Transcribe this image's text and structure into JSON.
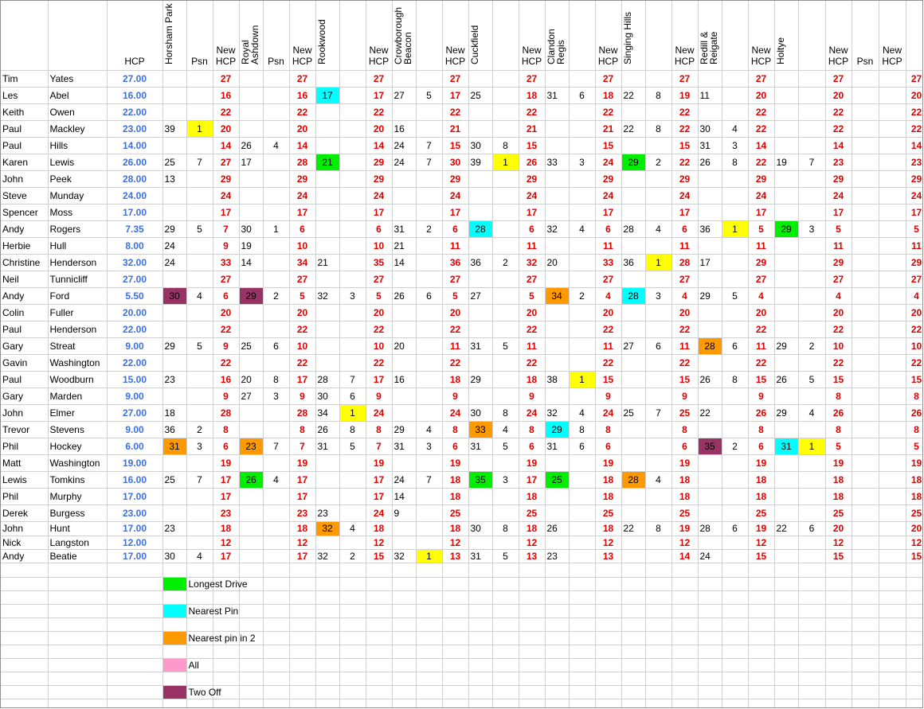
{
  "headers": {
    "hcp": "HCP",
    "psn": "Psn",
    "new_hcp_line1": "New",
    "new_hcp_line2": "HCP",
    "courses": [
      "Horsham Park",
      "Royal Ashdown",
      "Rookwood",
      "Crowborough Beacon",
      "Cuckfield",
      "Clandon Regis",
      "Singing Hills",
      "Redill & Reigate",
      "Holtye"
    ],
    "last_psn": "Psn"
  },
  "colors": {
    "green": "#00ee00",
    "cyan": "#00ffff",
    "yellow": "#ffff00",
    "orange": "#ff9900",
    "maroon": "#993366",
    "pink": "#ff99cc",
    "hcp_blue": "#3b6fe0",
    "new_hcp_red": "#e00000"
  },
  "rows": [
    {
      "first": "Tim",
      "last": "Yates",
      "hcp": "27.00",
      "cells": [
        "",
        "",
        "27",
        "",
        "",
        "27",
        "",
        "",
        "27",
        "",
        "",
        "27",
        "",
        "",
        "27",
        "",
        "",
        "27",
        "",
        "",
        "27",
        "",
        "",
        "27",
        "",
        "",
        "27",
        "",
        "",
        "27"
      ],
      "hl": {}
    },
    {
      "first": "Les",
      "last": "Abel",
      "hcp": "16.00",
      "cells": [
        "",
        "",
        "16",
        "",
        "",
        "16",
        "17",
        "",
        "17",
        "27",
        "5",
        "17",
        "25",
        "",
        "18",
        "31",
        "6",
        "18",
        "22",
        "8",
        "19",
        "11",
        "",
        "20",
        "",
        "",
        "20",
        "",
        "",
        "20"
      ],
      "hl": {
        "6": "cyan"
      }
    },
    {
      "first": "Keith",
      "last": "Owen",
      "hcp": "22.00",
      "cells": [
        "",
        "",
        "22",
        "",
        "",
        "22",
        "",
        "",
        "22",
        "",
        "",
        "22",
        "",
        "",
        "22",
        "",
        "",
        "22",
        "",
        "",
        "22",
        "",
        "",
        "22",
        "",
        "",
        "22",
        "",
        "",
        "22"
      ],
      "hl": {}
    },
    {
      "first": "Paul",
      "last": "Mackley",
      "hcp": "23.00",
      "cells": [
        "39",
        "1",
        "20",
        "",
        "",
        "20",
        "",
        "",
        "20",
        "16",
        "",
        "21",
        "",
        "",
        "21",
        "",
        "",
        "21",
        "22",
        "8",
        "22",
        "30",
        "4",
        "22",
        "",
        "",
        "22",
        "",
        "",
        "22"
      ],
      "hl": {
        "1": "yellow"
      }
    },
    {
      "first": "Paul",
      "last": "Hills",
      "hcp": "14.00",
      "cells": [
        "",
        "",
        "14",
        "26",
        "4",
        "14",
        "",
        "",
        "14",
        "24",
        "7",
        "15",
        "30",
        "8",
        "15",
        "",
        "",
        "15",
        "",
        "",
        "15",
        "31",
        "3",
        "14",
        "",
        "",
        "14",
        "",
        "",
        "14"
      ],
      "hl": {}
    },
    {
      "first": "Karen",
      "last": "Lewis",
      "hcp": "26.00",
      "cells": [
        "25",
        "7",
        "27",
        "17",
        "",
        "28",
        "21",
        "",
        "29",
        "24",
        "7",
        "30",
        "39",
        "1",
        "26",
        "33",
        "3",
        "24",
        "29",
        "2",
        "22",
        "26",
        "8",
        "22",
        "19",
        "7",
        "23",
        "",
        "",
        "23"
      ],
      "hl": {
        "6": "green",
        "13": "yellow",
        "18": "green"
      }
    },
    {
      "first": "John",
      "last": "Peek",
      "hcp": "28.00",
      "cells": [
        "13",
        "",
        "29",
        "",
        "",
        "29",
        "",
        "",
        "29",
        "",
        "",
        "29",
        "",
        "",
        "29",
        "",
        "",
        "29",
        "",
        "",
        "29",
        "",
        "",
        "29",
        "",
        "",
        "29",
        "",
        "",
        "29"
      ],
      "hl": {}
    },
    {
      "first": "Steve",
      "last": "Munday",
      "hcp": "24.00",
      "cells": [
        "",
        "",
        "24",
        "",
        "",
        "24",
        "",
        "",
        "24",
        "",
        "",
        "24",
        "",
        "",
        "24",
        "",
        "",
        "24",
        "",
        "",
        "24",
        "",
        "",
        "24",
        "",
        "",
        "24",
        "",
        "",
        "24"
      ],
      "hl": {}
    },
    {
      "first": "Spencer",
      "last": "Moss",
      "hcp": "17.00",
      "cells": [
        "",
        "",
        "17",
        "",
        "",
        "17",
        "",
        "",
        "17",
        "",
        "",
        "17",
        "",
        "",
        "17",
        "",
        "",
        "17",
        "",
        "",
        "17",
        "",
        "",
        "17",
        "",
        "",
        "17",
        "",
        "",
        "17"
      ],
      "hl": {}
    },
    {
      "first": "Andy",
      "last": "Rogers",
      "hcp": "7.35",
      "cells": [
        "29",
        "5",
        "7",
        "30",
        "1",
        "6",
        "",
        "",
        "6",
        "31",
        "2",
        "6",
        "28",
        "",
        "6",
        "32",
        "4",
        "6",
        "28",
        "4",
        "6",
        "36",
        "1",
        "5",
        "29",
        "3",
        "5",
        "",
        "",
        "5"
      ],
      "hl": {
        "12": "cyan",
        "22": "yellow",
        "24": "green"
      }
    },
    {
      "first": "Herbie",
      "last": "Hull",
      "hcp": "8.00",
      "cells": [
        "24",
        "",
        "9",
        "19",
        "",
        "10",
        "",
        "",
        "10",
        "21",
        "",
        "11",
        "",
        "",
        "11",
        "",
        "",
        "11",
        "",
        "",
        "11",
        "",
        "",
        "11",
        "",
        "",
        "11",
        "",
        "",
        "11"
      ],
      "hl": {}
    },
    {
      "first": "Christine",
      "last": "Henderson",
      "hcp": "32.00",
      "cells": [
        "24",
        "",
        "33",
        "14",
        "",
        "34",
        "21",
        "",
        "35",
        "14",
        "",
        "36",
        "36",
        "2",
        "32",
        "20",
        "",
        "33",
        "36",
        "1",
        "28",
        "17",
        "",
        "29",
        "",
        "",
        "29",
        "",
        "",
        "29"
      ],
      "hl": {
        "19": "yellow"
      }
    },
    {
      "first": "Neil",
      "last": "Tunnicliff",
      "hcp": "27.00",
      "cells": [
        "",
        "",
        "27",
        "",
        "",
        "27",
        "",
        "",
        "27",
        "",
        "",
        "27",
        "",
        "",
        "27",
        "",
        "",
        "27",
        "",
        "",
        "27",
        "",
        "",
        "27",
        "",
        "",
        "27",
        "",
        "",
        "27"
      ],
      "hl": {}
    },
    {
      "first": "Andy",
      "last": "Ford",
      "hcp": "5.50",
      "cells": [
        "30",
        "4",
        "6",
        "29",
        "2",
        "5",
        "32",
        "3",
        "5",
        "26",
        "6",
        "5",
        "27",
        "",
        "5",
        "34",
        "2",
        "4",
        "28",
        "3",
        "4",
        "29",
        "5",
        "4",
        "",
        "",
        "4",
        "",
        "",
        "4"
      ],
      "hl": {
        "0": "maroon",
        "3": "maroon",
        "15": "orange",
        "18": "cyan"
      }
    },
    {
      "first": "Colin",
      "last": "Fuller",
      "hcp": "20.00",
      "cells": [
        "",
        "",
        "20",
        "",
        "",
        "20",
        "",
        "",
        "20",
        "",
        "",
        "20",
        "",
        "",
        "20",
        "",
        "",
        "20",
        "",
        "",
        "20",
        "",
        "",
        "20",
        "",
        "",
        "20",
        "",
        "",
        "20"
      ],
      "hl": {}
    },
    {
      "first": "Paul",
      "last": "Henderson",
      "hcp": "22.00",
      "cells": [
        "",
        "",
        "22",
        "",
        "",
        "22",
        "",
        "",
        "22",
        "",
        "",
        "22",
        "",
        "",
        "22",
        "",
        "",
        "22",
        "",
        "",
        "22",
        "",
        "",
        "22",
        "",
        "",
        "22",
        "",
        "",
        "22"
      ],
      "hl": {}
    },
    {
      "first": "Gary",
      "last": "Streat",
      "hcp": "9.00",
      "cells": [
        "29",
        "5",
        "9",
        "25",
        "6",
        "10",
        "",
        "",
        "10",
        "20",
        "",
        "11",
        "31",
        "5",
        "11",
        "",
        "",
        "11",
        "27",
        "6",
        "11",
        "28",
        "6",
        "11",
        "29",
        "2",
        "10",
        "",
        "",
        "10"
      ],
      "hl": {
        "21": "orange"
      }
    },
    {
      "first": "Gavin",
      "last": "Washington",
      "hcp": "22.00",
      "cells": [
        "",
        "",
        "22",
        "",
        "",
        "22",
        "",
        "",
        "22",
        "",
        "",
        "22",
        "",
        "",
        "22",
        "",
        "",
        "22",
        "",
        "",
        "22",
        "",
        "",
        "22",
        "",
        "",
        "22",
        "",
        "",
        "22"
      ],
      "hl": {}
    },
    {
      "first": "Paul",
      "last": "Woodburn",
      "hcp": "15.00",
      "cells": [
        "23",
        "",
        "16",
        "20",
        "8",
        "17",
        "28",
        "7",
        "17",
        "16",
        "",
        "18",
        "29",
        "",
        "18",
        "38",
        "1",
        "15",
        "",
        "",
        "15",
        "26",
        "8",
        "15",
        "26",
        "5",
        "15",
        "",
        "",
        "15"
      ],
      "hl": {
        "16": "yellow"
      }
    },
    {
      "first": "Gary",
      "last": "Marden",
      "hcp": "9.00",
      "cells": [
        "",
        "",
        "9",
        "27",
        "3",
        "9",
        "30",
        "6",
        "9",
        "",
        "",
        "9",
        "",
        "",
        "9",
        "",
        "",
        "9",
        "",
        "",
        "9",
        "",
        "",
        "9",
        "",
        "",
        "8",
        "",
        "",
        "8"
      ],
      "hl": {}
    },
    {
      "first": "John",
      "last": "Elmer",
      "hcp": "27.00",
      "cells": [
        "18",
        "",
        "28",
        "",
        "",
        "28",
        "34",
        "1",
        "24",
        "",
        "",
        "24",
        "30",
        "8",
        "24",
        "32",
        "4",
        "24",
        "25",
        "7",
        "25",
        "22",
        "",
        "26",
        "29",
        "4",
        "26",
        "",
        "",
        "26"
      ],
      "hl": {
        "7": "yellow"
      }
    },
    {
      "first": "Trevor",
      "last": "Stevens",
      "hcp": "9.00",
      "cells": [
        "36",
        "2",
        "8",
        "",
        "",
        "8",
        "26",
        "8",
        "8",
        "29",
        "4",
        "8",
        "33",
        "4",
        "8",
        "29",
        "8",
        "8",
        "",
        "",
        "8",
        "",
        "",
        "8",
        "",
        "",
        "8",
        "",
        "",
        "8"
      ],
      "hl": {
        "12": "orange",
        "15": "cyan"
      }
    },
    {
      "first": "Phil",
      "last": "Hockey",
      "hcp": "6.00",
      "cells": [
        "31",
        "3",
        "6",
        "23",
        "7",
        "7",
        "31",
        "5",
        "7",
        "31",
        "3",
        "6",
        "31",
        "5",
        "6",
        "31",
        "6",
        "6",
        "",
        "",
        "6",
        "35",
        "2",
        "6",
        "31",
        "1",
        "5",
        "",
        "",
        "5"
      ],
      "hl": {
        "0": "orange",
        "3": "orange",
        "21": "maroon",
        "24": "cyan",
        "25": "yellow"
      }
    },
    {
      "first": "Matt",
      "last": "Washington",
      "hcp": "19.00",
      "cells": [
        "",
        "",
        "19",
        "",
        "",
        "19",
        "",
        "",
        "19",
        "",
        "",
        "19",
        "",
        "",
        "19",
        "",
        "",
        "19",
        "",
        "",
        "19",
        "",
        "",
        "19",
        "",
        "",
        "19",
        "",
        "",
        "19"
      ],
      "hl": {}
    },
    {
      "first": "Lewis",
      "last": "Tomkins",
      "hcp": "16.00",
      "cells": [
        "25",
        "7",
        "17",
        "26",
        "4",
        "17",
        "",
        "",
        "17",
        "24",
        "7",
        "18",
        "35",
        "3",
        "17",
        "25",
        "",
        "18",
        "28",
        "4",
        "18",
        "",
        "",
        "18",
        "",
        "",
        "18",
        "",
        "",
        "18"
      ],
      "hl": {
        "3": "green",
        "12": "green",
        "15": "green",
        "18": "orange"
      }
    },
    {
      "first": "Phil",
      "last": "Murphy",
      "hcp": "17.00",
      "cells": [
        "",
        "",
        "17",
        "",
        "",
        "17",
        "",
        "",
        "17",
        "14",
        "",
        "18",
        "",
        "",
        "18",
        "",
        "",
        "18",
        "",
        "",
        "18",
        "",
        "",
        "18",
        "",
        "",
        "18",
        "",
        "",
        "18"
      ],
      "hl": {}
    },
    {
      "first": "Derek",
      "last": "Burgess",
      "hcp": "23.00",
      "cells": [
        "",
        "",
        "23",
        "",
        "",
        "23",
        "23",
        "",
        "24",
        "9",
        "",
        "25",
        "",
        "",
        "25",
        "",
        "",
        "25",
        "",
        "",
        "25",
        "",
        "",
        "25",
        "",
        "",
        "25",
        "",
        "",
        "25"
      ],
      "hl": {}
    },
    {
      "first": "John",
      "last": "Hunt",
      "hcp": "17.00",
      "cells": [
        "23",
        "",
        "18",
        "",
        "",
        "18",
        "32",
        "4",
        "18",
        "",
        "",
        "18",
        "30",
        "8",
        "18",
        "26",
        "",
        "18",
        "22",
        "8",
        "19",
        "28",
        "6",
        "19",
        "22",
        "6",
        "20",
        "",
        "",
        "20"
      ],
      "hl": {
        "6": "orange"
      }
    },
    {
      "first": "Nick",
      "last": "Langston",
      "hcp": "12.00",
      "cells": [
        "",
        "",
        "12",
        "",
        "",
        "12",
        "",
        "",
        "12",
        "",
        "",
        "12",
        "",
        "",
        "12",
        "",
        "",
        "12",
        "",
        "",
        "12",
        "",
        "",
        "12",
        "",
        "",
        "12",
        "",
        "",
        "12"
      ],
      "hl": {}
    },
    {
      "first": "Andy",
      "last": "Beatie",
      "hcp": "17.00",
      "cells": [
        "30",
        "4",
        "17",
        "",
        "",
        "17",
        "32",
        "2",
        "15",
        "32",
        "1",
        "13",
        "31",
        "5",
        "13",
        "23",
        "",
        "13",
        "",
        "",
        "14",
        "24",
        "",
        "15",
        "",
        "",
        "15",
        "",
        "",
        "15"
      ],
      "hl": {
        "10": "yellow"
      }
    }
  ],
  "legend": [
    {
      "color": "green",
      "label": "Longest Drive"
    },
    {
      "color": "cyan",
      "label": "Nearest Pin"
    },
    {
      "color": "orange",
      "label": " Nearest pin in 2"
    },
    {
      "color": "pink",
      "label": "All"
    },
    {
      "color": "maroon",
      "label": "Two Off"
    }
  ]
}
